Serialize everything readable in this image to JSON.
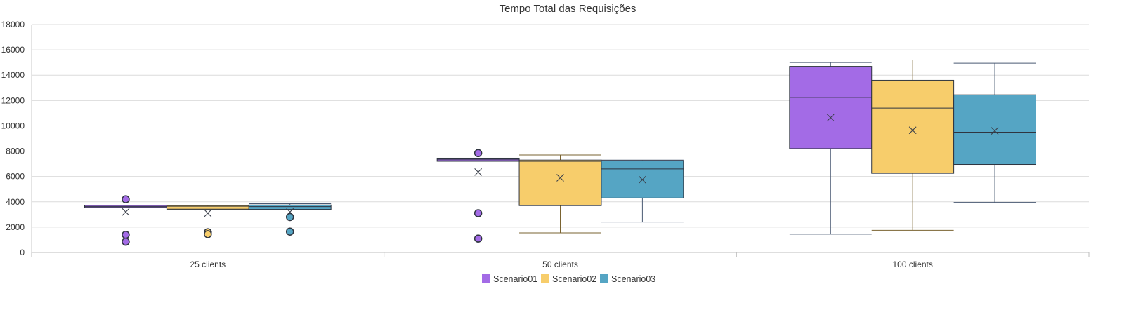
{
  "chart_data": {
    "type": "boxplot",
    "title": "Tempo Total das Requisições",
    "categories": [
      "25 clients",
      "50 clients",
      "100 clients"
    ],
    "ylim": [
      0,
      18000
    ],
    "yticks": [
      0,
      2000,
      4000,
      6000,
      8000,
      10000,
      12000,
      14000,
      16000,
      18000
    ],
    "grid": true,
    "legend_position": "bottom",
    "series": [
      {
        "name": "Scenario01",
        "color": "#A36BE6",
        "boxes": [
          {
            "min": 3550,
            "q1": 3550,
            "median": 3620,
            "q3": 3720,
            "max": 3720,
            "mean": 3200,
            "outliers": [
              4200,
              1400,
              850
            ]
          },
          {
            "min": 7200,
            "q1": 7200,
            "median": 7320,
            "q3": 7450,
            "max": 7450,
            "mean": 6350,
            "outliers": [
              7850,
              3100,
              1100
            ]
          },
          {
            "min": 1450,
            "q1": 8200,
            "median": 12250,
            "q3": 14700,
            "max": 15000,
            "mean": 10650,
            "outliers": []
          }
        ]
      },
      {
        "name": "Scenario02",
        "color": "#F7CD6B",
        "boxes": [
          {
            "min": 3400,
            "q1": 3400,
            "median": 3500,
            "q3": 3650,
            "max": 3700,
            "mean": 3100,
            "outliers": [
              1600,
              1450
            ]
          },
          {
            "min": 1550,
            "q1": 3700,
            "median": 7200,
            "q3": 7300,
            "max": 7700,
            "mean": 5900,
            "outliers": []
          },
          {
            "min": 1750,
            "q1": 6250,
            "median": 11400,
            "q3": 13600,
            "max": 15200,
            "mean": 9650,
            "outliers": []
          }
        ]
      },
      {
        "name": "Scenario03",
        "color": "#55A5C4",
        "boxes": [
          {
            "min": 3400,
            "q1": 3400,
            "median": 3620,
            "q3": 3750,
            "max": 3850,
            "mean": 3200,
            "outliers": [
              2800,
              1650
            ]
          },
          {
            "min": 2400,
            "q1": 4300,
            "median": 6600,
            "q3": 7250,
            "max": 7300,
            "mean": 5750,
            "outliers": []
          },
          {
            "min": 3950,
            "q1": 6950,
            "median": 9500,
            "q3": 12450,
            "max": 14950,
            "mean": 9600,
            "outliers": []
          }
        ]
      }
    ]
  }
}
